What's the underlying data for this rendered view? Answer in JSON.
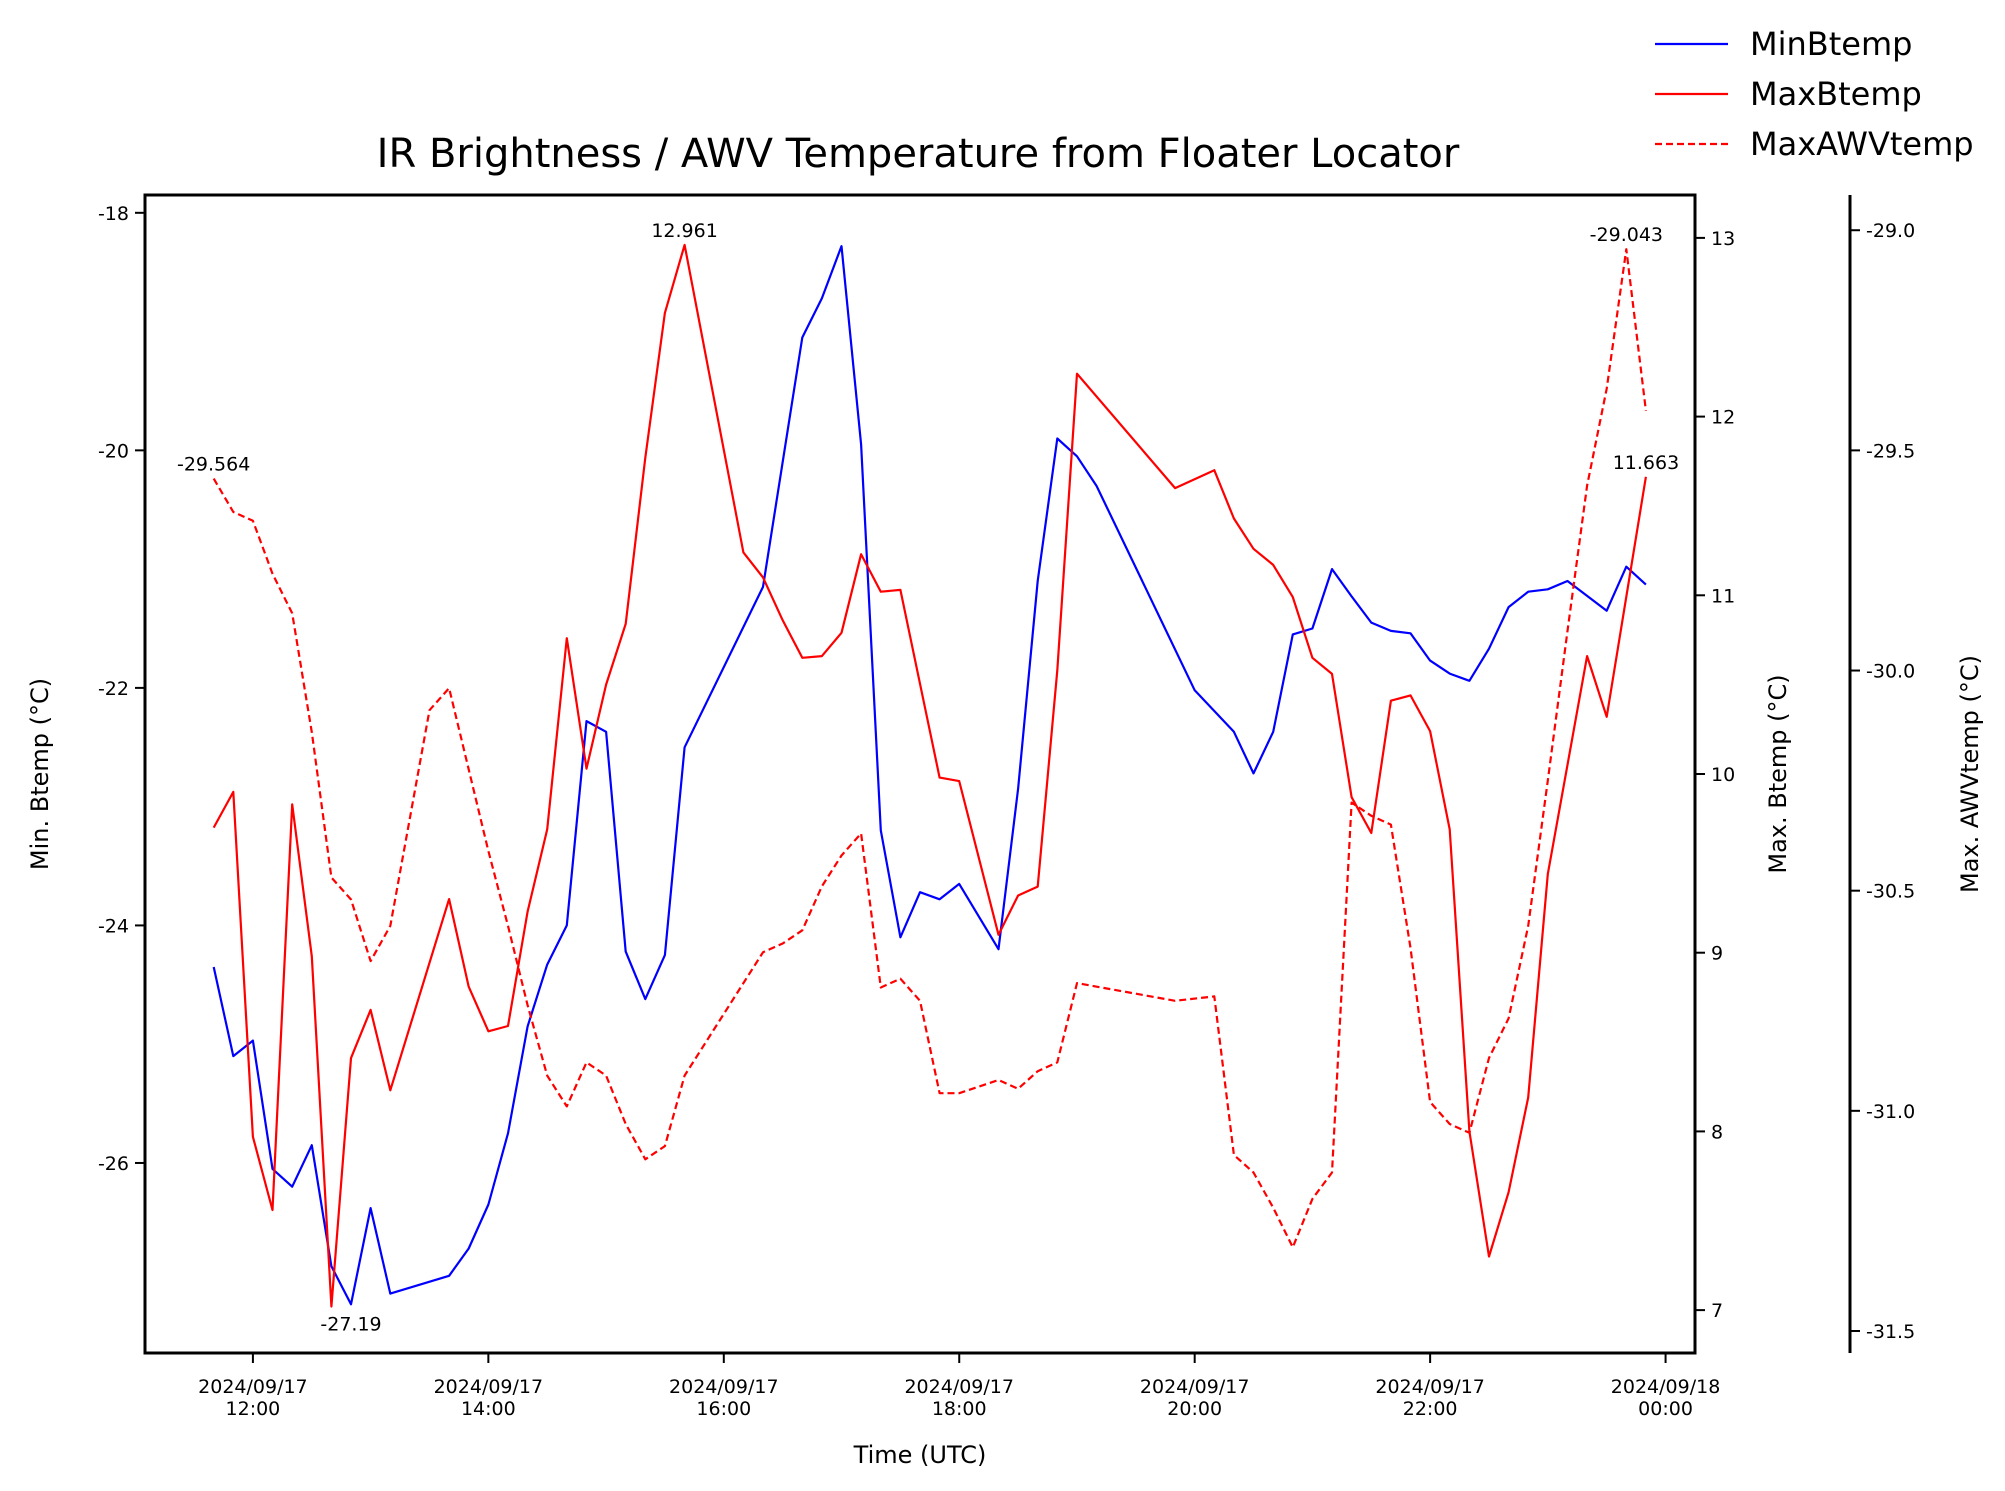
{
  "chart_data": {
    "type": "line",
    "title": "IR Brightness / AWV Temperature from Floater Locator",
    "xlabel": "Time (UTC)",
    "xlim": [
      "2024-09-17T11:05",
      "2024-09-18T00:15"
    ],
    "x_ticks": [
      {
        "t": "2024-09-17T12:00",
        "line1": "2024/09/17",
        "line2": "12:00"
      },
      {
        "t": "2024-09-17T14:00",
        "line1": "2024/09/17",
        "line2": "14:00"
      },
      {
        "t": "2024-09-17T16:00",
        "line1": "2024/09/17",
        "line2": "16:00"
      },
      {
        "t": "2024-09-17T18:00",
        "line1": "2024/09/17",
        "line2": "18:00"
      },
      {
        "t": "2024-09-17T20:00",
        "line1": "2024/09/17",
        "line2": "20:00"
      },
      {
        "t": "2024-09-17T22:00",
        "line1": "2024/09/17",
        "line2": "22:00"
      },
      {
        "t": "2024-09-18T00:00",
        "line1": "2024/09/18",
        "line2": "00:00"
      }
    ],
    "axes": {
      "left": {
        "label": "Min. Btemp (°C)",
        "range": [
          -27.6,
          -17.85
        ],
        "ticks": [
          "-18",
          "-20",
          "-22",
          "-24",
          "-26"
        ]
      },
      "right": {
        "label": "Max. Btemp (°C)",
        "range": [
          6.76,
          13.24
        ],
        "ticks": [
          "7",
          "8",
          "9",
          "10",
          "11",
          "12",
          "13"
        ]
      },
      "right2": {
        "label": "Max. AWVtemp (°C)",
        "range": [
          -31.55,
          -28.92
        ],
        "ticks": [
          "-29.0",
          "-29.5",
          "-30.0",
          "-30.5",
          "-31.0",
          "-31.5"
        ]
      }
    },
    "legend_position": "top-right",
    "grid": false,
    "series": [
      {
        "name": "MinBtemp",
        "axis": "left",
        "color": "#0000ff",
        "style": "solid",
        "points": [
          [
            "2024-09-17T11:40",
            -24.35
          ],
          [
            "2024-09-17T11:50",
            -25.1
          ],
          [
            "2024-09-17T12:00",
            -24.97
          ],
          [
            "2024-09-17T12:10",
            -26.05
          ],
          [
            "2024-09-17T12:20",
            -26.2
          ],
          [
            "2024-09-17T12:30",
            -25.85
          ],
          [
            "2024-09-17T12:40",
            -26.87
          ],
          [
            "2024-09-17T12:50",
            -27.19
          ],
          [
            "2024-09-17T13:00",
            -26.38
          ],
          [
            "2024-09-17T13:10",
            -27.1
          ],
          [
            "2024-09-17T13:40",
            -26.95
          ],
          [
            "2024-09-17T13:50",
            -26.72
          ],
          [
            "2024-09-17T14:00",
            -26.35
          ],
          [
            "2024-09-17T14:10",
            -25.75
          ],
          [
            "2024-09-17T14:20",
            -24.85
          ],
          [
            "2024-09-17T14:30",
            -24.33
          ],
          [
            "2024-09-17T14:40",
            -24.0
          ],
          [
            "2024-09-17T14:50",
            -22.28
          ],
          [
            "2024-09-17T15:00",
            -22.37
          ],
          [
            "2024-09-17T15:10",
            -24.22
          ],
          [
            "2024-09-17T15:20",
            -24.62
          ],
          [
            "2024-09-17T15:30",
            -24.25
          ],
          [
            "2024-09-17T15:40",
            -22.5
          ],
          [
            "2024-09-17T16:20",
            -21.15
          ],
          [
            "2024-09-17T16:40",
            -19.05
          ],
          [
            "2024-09-17T16:50",
            -18.72
          ],
          [
            "2024-09-17T17:00",
            -18.28
          ],
          [
            "2024-09-17T17:10",
            -19.95
          ],
          [
            "2024-09-17T17:20",
            -23.2
          ],
          [
            "2024-09-17T17:30",
            -24.1
          ],
          [
            "2024-09-17T17:40",
            -23.72
          ],
          [
            "2024-09-17T17:50",
            -23.78
          ],
          [
            "2024-09-17T18:00",
            -23.65
          ],
          [
            "2024-09-17T18:20",
            -24.2
          ],
          [
            "2024-09-17T18:30",
            -22.85
          ],
          [
            "2024-09-17T18:40",
            -21.1
          ],
          [
            "2024-09-17T18:50",
            -19.9
          ],
          [
            "2024-09-17T19:00",
            -20.05
          ],
          [
            "2024-09-17T19:10",
            -20.3
          ],
          [
            "2024-09-17T20:00",
            -22.02
          ],
          [
            "2024-09-17T20:20",
            -22.37
          ],
          [
            "2024-09-17T20:30",
            -22.72
          ],
          [
            "2024-09-17T20:40",
            -22.37
          ],
          [
            "2024-09-17T20:50",
            -21.55
          ],
          [
            "2024-09-17T21:00",
            -21.5
          ],
          [
            "2024-09-17T21:10",
            -21.0
          ],
          [
            "2024-09-17T21:20",
            -21.23
          ],
          [
            "2024-09-17T21:30",
            -21.45
          ],
          [
            "2024-09-17T21:40",
            -21.52
          ],
          [
            "2024-09-17T21:50",
            -21.54
          ],
          [
            "2024-09-17T22:00",
            -21.77
          ],
          [
            "2024-09-17T22:10",
            -21.88
          ],
          [
            "2024-09-17T22:20",
            -21.94
          ],
          [
            "2024-09-17T22:30",
            -21.67
          ],
          [
            "2024-09-17T22:40",
            -21.32
          ],
          [
            "2024-09-17T22:50",
            -21.19
          ],
          [
            "2024-09-17T23:00",
            -21.17
          ],
          [
            "2024-09-17T23:10",
            -21.1
          ],
          [
            "2024-09-17T23:30",
            -21.35
          ],
          [
            "2024-09-17T23:40",
            -20.98
          ],
          [
            "2024-09-17T23:50",
            -21.13
          ]
        ]
      },
      {
        "name": "MaxBtemp",
        "axis": "right",
        "color": "#ff0000",
        "style": "solid",
        "points": [
          [
            "2024-09-17T11:40",
            9.7
          ],
          [
            "2024-09-17T11:50",
            9.9
          ],
          [
            "2024-09-17T12:00",
            7.97
          ],
          [
            "2024-09-17T12:10",
            7.56
          ],
          [
            "2024-09-17T12:20",
            9.83
          ],
          [
            "2024-09-17T12:30",
            8.98
          ],
          [
            "2024-09-17T12:40",
            7.02
          ],
          [
            "2024-09-17T12:50",
            8.41
          ],
          [
            "2024-09-17T13:00",
            8.68
          ],
          [
            "2024-09-17T13:10",
            8.23
          ],
          [
            "2024-09-17T13:40",
            9.3
          ],
          [
            "2024-09-17T13:50",
            8.81
          ],
          [
            "2024-09-17T14:00",
            8.56
          ],
          [
            "2024-09-17T14:10",
            8.59
          ],
          [
            "2024-09-17T14:20",
            9.23
          ],
          [
            "2024-09-17T14:30",
            9.69
          ],
          [
            "2024-09-17T14:40",
            10.76
          ],
          [
            "2024-09-17T14:50",
            10.03
          ],
          [
            "2024-09-17T15:00",
            10.5
          ],
          [
            "2024-09-17T15:10",
            10.84
          ],
          [
            "2024-09-17T15:20",
            11.77
          ],
          [
            "2024-09-17T15:30",
            12.58
          ],
          [
            "2024-09-17T15:40",
            12.961
          ],
          [
            "2024-09-17T16:10",
            11.24
          ],
          [
            "2024-09-17T16:20",
            11.1
          ],
          [
            "2024-09-17T16:30",
            10.86
          ],
          [
            "2024-09-17T16:40",
            10.65
          ],
          [
            "2024-09-17T16:50",
            10.66
          ],
          [
            "2024-09-17T17:00",
            10.79
          ],
          [
            "2024-09-17T17:10",
            11.23
          ],
          [
            "2024-09-17T17:20",
            11.02
          ],
          [
            "2024-09-17T17:30",
            11.03
          ],
          [
            "2024-09-17T17:50",
            9.98
          ],
          [
            "2024-09-17T18:00",
            9.96
          ],
          [
            "2024-09-17T18:20",
            9.1
          ],
          [
            "2024-09-17T18:30",
            9.32
          ],
          [
            "2024-09-17T18:40",
            9.37
          ],
          [
            "2024-09-17T18:50",
            10.58
          ],
          [
            "2024-09-17T19:00",
            12.24
          ],
          [
            "2024-09-17T19:50",
            11.6
          ],
          [
            "2024-09-17T20:10",
            11.7
          ],
          [
            "2024-09-17T20:20",
            11.43
          ],
          [
            "2024-09-17T20:30",
            11.26
          ],
          [
            "2024-09-17T20:40",
            11.17
          ],
          [
            "2024-09-17T20:50",
            10.99
          ],
          [
            "2024-09-17T21:00",
            10.65
          ],
          [
            "2024-09-17T21:10",
            10.56
          ],
          [
            "2024-09-17T21:20",
            9.87
          ],
          [
            "2024-09-17T21:30",
            9.67
          ],
          [
            "2024-09-17T21:40",
            10.41
          ],
          [
            "2024-09-17T21:50",
            10.44
          ],
          [
            "2024-09-17T22:00",
            10.24
          ],
          [
            "2024-09-17T22:10",
            9.69
          ],
          [
            "2024-09-17T22:20",
            8.0
          ],
          [
            "2024-09-17T22:30",
            7.3
          ],
          [
            "2024-09-17T22:40",
            7.66
          ],
          [
            "2024-09-17T22:50",
            8.19
          ],
          [
            "2024-09-17T23:00",
            9.44
          ],
          [
            "2024-09-17T23:20",
            10.66
          ],
          [
            "2024-09-17T23:30",
            10.32
          ],
          [
            "2024-09-17T23:50",
            11.663
          ]
        ]
      },
      {
        "name": "MaxAWVtemp",
        "axis": "right2",
        "color": "#ff0000",
        "style": "dashed",
        "points": [
          [
            "2024-09-17T11:40",
            -29.564
          ],
          [
            "2024-09-17T11:50",
            -29.64
          ],
          [
            "2024-09-17T12:00",
            -29.66
          ],
          [
            "2024-09-17T12:10",
            -29.78
          ],
          [
            "2024-09-17T12:20",
            -29.87
          ],
          [
            "2024-09-17T12:30",
            -30.14
          ],
          [
            "2024-09-17T12:40",
            -30.47
          ],
          [
            "2024-09-17T12:50",
            -30.52
          ],
          [
            "2024-09-17T13:00",
            -30.66
          ],
          [
            "2024-09-17T13:10",
            -30.58
          ],
          [
            "2024-09-17T13:30",
            -30.09
          ],
          [
            "2024-09-17T13:40",
            -30.04
          ],
          [
            "2024-09-17T14:00",
            -30.41
          ],
          [
            "2024-09-17T14:10",
            -30.58
          ],
          [
            "2024-09-17T14:20",
            -30.76
          ],
          [
            "2024-09-17T14:30",
            -30.92
          ],
          [
            "2024-09-17T14:40",
            -30.99
          ],
          [
            "2024-09-17T14:50",
            -30.89
          ],
          [
            "2024-09-17T15:00",
            -30.92
          ],
          [
            "2024-09-17T15:10",
            -31.03
          ],
          [
            "2024-09-17T15:20",
            -31.11
          ],
          [
            "2024-09-17T15:30",
            -31.08
          ],
          [
            "2024-09-17T15:40",
            -30.92
          ],
          [
            "2024-09-17T16:20",
            -30.64
          ],
          [
            "2024-09-17T16:30",
            -30.62
          ],
          [
            "2024-09-17T16:40",
            -30.59
          ],
          [
            "2024-09-17T16:50",
            -30.49
          ],
          [
            "2024-09-17T17:00",
            -30.42
          ],
          [
            "2024-09-17T17:10",
            -30.37
          ],
          [
            "2024-09-17T17:20",
            -30.72
          ],
          [
            "2024-09-17T17:30",
            -30.7
          ],
          [
            "2024-09-17T17:40",
            -30.75
          ],
          [
            "2024-09-17T17:50",
            -30.96
          ],
          [
            "2024-09-17T18:00",
            -30.96
          ],
          [
            "2024-09-17T18:20",
            -30.93
          ],
          [
            "2024-09-17T18:30",
            -30.95
          ],
          [
            "2024-09-17T18:40",
            -30.91
          ],
          [
            "2024-09-17T18:50",
            -30.89
          ],
          [
            "2024-09-17T19:00",
            -30.71
          ],
          [
            "2024-09-17T19:50",
            -30.75
          ],
          [
            "2024-09-17T20:10",
            -30.74
          ],
          [
            "2024-09-17T20:20",
            -31.1
          ],
          [
            "2024-09-17T20:30",
            -31.14
          ],
          [
            "2024-09-17T20:40",
            -31.22
          ],
          [
            "2024-09-17T20:50",
            -31.31
          ],
          [
            "2024-09-17T21:00",
            -31.2
          ],
          [
            "2024-09-17T21:10",
            -31.14
          ],
          [
            "2024-09-17T21:20",
            -30.3
          ],
          [
            "2024-09-17T21:30",
            -30.33
          ],
          [
            "2024-09-17T21:40",
            -30.35
          ],
          [
            "2024-09-17T21:50",
            -30.63
          ],
          [
            "2024-09-17T22:00",
            -30.98
          ],
          [
            "2024-09-17T22:10",
            -31.03
          ],
          [
            "2024-09-17T22:20",
            -31.05
          ],
          [
            "2024-09-17T22:30",
            -30.88
          ],
          [
            "2024-09-17T22:40",
            -30.79
          ],
          [
            "2024-09-17T22:50",
            -30.58
          ],
          [
            "2024-09-17T23:00",
            -30.25
          ],
          [
            "2024-09-17T23:10",
            -29.91
          ],
          [
            "2024-09-17T23:20",
            -29.58
          ],
          [
            "2024-09-17T23:30",
            -29.36
          ],
          [
            "2024-09-17T23:40",
            -29.043
          ],
          [
            "2024-09-17T23:50",
            -29.41
          ]
        ]
      }
    ],
    "annotations": [
      {
        "text": "-29.564",
        "t": "2024-09-17T11:40",
        "axis": "right2",
        "value": -29.564
      },
      {
        "text": "-27.19",
        "t": "2024-09-17T12:50",
        "axis": "left",
        "value": -27.19
      },
      {
        "text": "12.961",
        "t": "2024-09-17T15:40",
        "axis": "right",
        "value": 12.961
      },
      {
        "text": "-29.043",
        "t": "2024-09-17T23:40",
        "axis": "right2",
        "value": -29.043
      },
      {
        "text": "11.663",
        "t": "2024-09-17T23:50",
        "axis": "right",
        "value": 11.663
      }
    ]
  }
}
